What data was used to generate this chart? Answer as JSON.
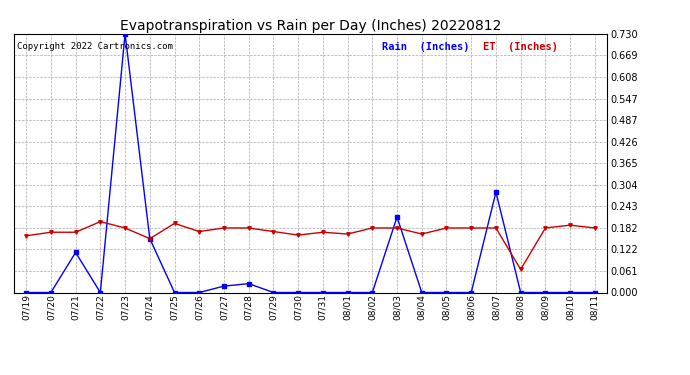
{
  "title": "Evapotranspiration vs Rain per Day (Inches) 20220812",
  "copyright": "Copyright 2022 Cartronics.com",
  "legend_rain": "Rain  (Inches)",
  "legend_et": "ET  (Inches)",
  "x_labels": [
    "07/19",
    "07/20",
    "07/21",
    "07/22",
    "07/23",
    "07/24",
    "07/25",
    "07/26",
    "07/27",
    "07/28",
    "07/29",
    "07/30",
    "07/31",
    "08/01",
    "08/02",
    "08/03",
    "08/04",
    "08/05",
    "08/06",
    "08/07",
    "08/08",
    "08/09",
    "08/10",
    "08/11"
  ],
  "rain_values": [
    0.0,
    0.0,
    0.113,
    0.0,
    0.73,
    0.152,
    0.0,
    0.0,
    0.018,
    0.025,
    0.0,
    0.0,
    0.0,
    0.0,
    0.0,
    0.213,
    0.0,
    0.0,
    0.0,
    0.283,
    0.0,
    0.0,
    0.0,
    0.0
  ],
  "et_values": [
    0.16,
    0.17,
    0.17,
    0.2,
    0.182,
    0.152,
    0.195,
    0.172,
    0.182,
    0.182,
    0.172,
    0.162,
    0.17,
    0.165,
    0.182,
    0.182,
    0.165,
    0.182,
    0.182,
    0.182,
    0.065,
    0.182,
    0.19,
    0.182
  ],
  "rain_color": "#0000ff",
  "et_color": "#cc0000",
  "bg_color": "#ffffff",
  "grid_color": "#aaaaaa",
  "title_color": "#000000",
  "copyright_color": "#000000",
  "legend_rain_color": "#0000ff",
  "legend_et_color": "#cc0000",
  "ylim": [
    0.0,
    0.73
  ],
  "yticks": [
    0.0,
    0.061,
    0.122,
    0.182,
    0.243,
    0.304,
    0.365,
    0.426,
    0.487,
    0.547,
    0.608,
    0.669,
    0.73
  ]
}
